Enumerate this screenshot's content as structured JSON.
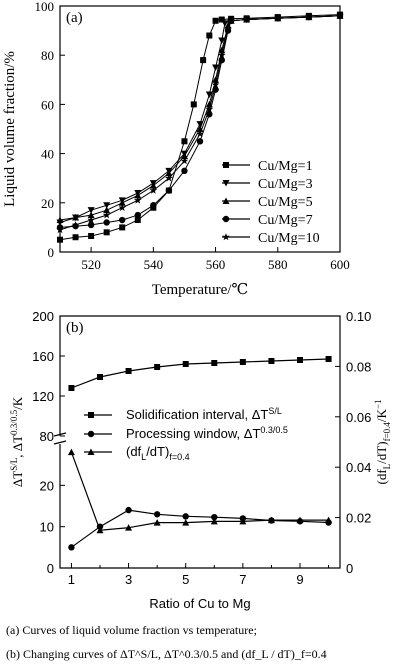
{
  "chart_data": [
    {
      "panel_label": "(a)",
      "type": "line",
      "xlabel": "Temperature/℃",
      "ylabel": "Liquid volume fraction/%",
      "xlim": [
        510,
        600
      ],
      "ylim": [
        0,
        100
      ],
      "xticks": [
        520,
        540,
        560,
        580,
        600
      ],
      "yticks": [
        0,
        20,
        40,
        60,
        80,
        100
      ],
      "legend_position": "center-right",
      "series": [
        {
          "name": "Cu/Mg=1",
          "marker": "square",
          "x": [
            510,
            515,
            520,
            525,
            530,
            535,
            540,
            545,
            550,
            553,
            556,
            558,
            560,
            562,
            565,
            570,
            580,
            590,
            600
          ],
          "y": [
            5,
            6,
            6.5,
            8,
            10,
            13,
            18,
            25,
            45,
            60,
            78,
            88,
            94,
            94.5,
            94.8,
            95,
            95.5,
            96,
            96.5
          ]
        },
        {
          "name": "Cu/Mg=3",
          "marker": "triangle-down",
          "x": [
            510,
            515,
            520,
            525,
            530,
            535,
            540,
            545,
            550,
            555,
            558,
            560,
            562,
            563,
            565,
            570,
            580,
            590,
            600
          ],
          "y": [
            12,
            14,
            17,
            19,
            21,
            24,
            28,
            33,
            40,
            52,
            64,
            75,
            86,
            93,
            94,
            94.5,
            95,
            95.5,
            96
          ]
        },
        {
          "name": "Cu/Mg=5",
          "marker": "triangle-up",
          "x": [
            510,
            515,
            520,
            525,
            530,
            535,
            540,
            545,
            550,
            555,
            558,
            560,
            562,
            564,
            565,
            570,
            580,
            590,
            600
          ],
          "y": [
            13,
            14,
            15,
            17,
            20,
            23,
            27,
            32,
            39,
            50,
            60,
            70,
            82,
            92,
            94,
            94.5,
            95,
            95.5,
            96
          ]
        },
        {
          "name": "Cu/Mg=7",
          "marker": "circle",
          "x": [
            510,
            515,
            520,
            525,
            530,
            535,
            540,
            545,
            550,
            555,
            558,
            560,
            562,
            564,
            565,
            570,
            580,
            590,
            600
          ],
          "y": [
            10,
            10.5,
            11,
            12,
            13,
            15,
            19,
            25,
            33,
            45,
            56,
            66,
            78,
            90,
            94,
            94.5,
            95,
            95.5,
            96
          ]
        },
        {
          "name": "Cu/Mg=10",
          "marker": "star",
          "x": [
            510,
            515,
            520,
            525,
            530,
            535,
            540,
            545,
            550,
            555,
            558,
            560,
            562,
            564,
            565,
            570,
            580,
            590,
            600
          ],
          "y": [
            9,
            11,
            13,
            15,
            18,
            21,
            25,
            30,
            37,
            48,
            58,
            68,
            80,
            91,
            94,
            94.5,
            95,
            95.5,
            96
          ]
        }
      ]
    },
    {
      "panel_label": "(b)",
      "type": "line",
      "xlabel": "Ratio of Cu to Mg",
      "ylabel_left": "ΔT^S/L, ΔT^0.3/0.5/K",
      "ylabel_right": "(df_L/dT)_f=0.4/K^-1",
      "x": [
        1,
        2,
        3,
        4,
        5,
        6,
        7,
        8,
        9,
        10
      ],
      "xticks": [
        1,
        3,
        5,
        7,
        9
      ],
      "left_axis_upper": {
        "ylim": [
          80,
          200
        ],
        "ticks": [
          80,
          120,
          160,
          200
        ]
      },
      "left_axis_lower": {
        "ylim": [
          0,
          30
        ],
        "ticks": [
          0,
          10,
          20
        ]
      },
      "right_axis": {
        "ylim": [
          0,
          0.1
        ],
        "ticks": [
          0,
          0.02,
          0.04,
          0.06,
          0.08,
          0.1
        ]
      },
      "legend_position": "center",
      "series": [
        {
          "name": "Solidification interval, ΔT^S/L",
          "axis": "left",
          "marker": "square",
          "values": [
            128,
            139,
            145,
            149,
            152,
            153,
            154,
            155,
            156,
            157
          ]
        },
        {
          "name": "Processing window, ΔT^0.3/0.5",
          "axis": "left",
          "marker": "circle",
          "values": [
            5,
            10,
            14,
            13,
            12.5,
            12.3,
            12,
            11.5,
            11.3,
            11
          ]
        },
        {
          "name": "(df_L/dT)_f=0.4",
          "axis": "right",
          "marker": "triangle-up",
          "values": [
            0.046,
            0.015,
            0.016,
            0.018,
            0.018,
            0.0185,
            0.0185,
            0.019,
            0.019,
            0.019
          ]
        }
      ]
    }
  ],
  "text": {
    "a_panel": "(a)",
    "a_xlabel": "Temperature/℃",
    "a_ylabel": "Liquid volume fraction/%",
    "a_xticks": [
      "520",
      "540",
      "560",
      "580",
      "600"
    ],
    "a_yticks": [
      "0",
      "20",
      "40",
      "60",
      "80",
      "100"
    ],
    "a_legend": [
      "Cu/Mg=1",
      "Cu/Mg=3",
      "Cu/Mg=5",
      "Cu/Mg=7",
      "Cu/Mg=10"
    ],
    "b_panel": "(b)",
    "b_xlabel": "Ratio of Cu to Mg",
    "b_xticks": [
      "1",
      "3",
      "5",
      "7",
      "9"
    ],
    "b_yticks_upper": [
      "80",
      "120",
      "160",
      "200"
    ],
    "b_yticks_lower": [
      "0",
      "10",
      "20"
    ],
    "b_yticks_right": [
      "0",
      "0.02",
      "0.04",
      "0.06",
      "0.08",
      "0.10"
    ],
    "b_legend": [
      "Solidification interval, ΔT",
      "Processing window, ΔT",
      "(df",
      "/dT)"
    ],
    "b_legend_sup": [
      "S/L",
      "0.3/0.5"
    ],
    "b_legend_sub": [
      "L",
      "f=0.4"
    ],
    "b_ylabel_left": "ΔT",
    "b_ylabel_left_sup1": "S/L",
    "b_ylabel_left_mid": ", ΔT",
    "b_ylabel_left_sup2": "0.3/0.5",
    "b_ylabel_left_end": "/K",
    "b_ylabel_right": "(df",
    "b_ylabel_right_sub1": "L",
    "b_ylabel_right_mid": "/dT)",
    "b_ylabel_right_sub2": "f=0.4",
    "b_ylabel_right_end": "/K",
    "b_ylabel_right_sup": "−1",
    "caption1": "(a)  Curves  of  liquid  volume  fraction  vs  temperature;",
    "caption2": "(b) Changing curves of  ΔT^S/L, ΔT^0.3/0.5 and  (df_L / dT)_f=0.4"
  }
}
